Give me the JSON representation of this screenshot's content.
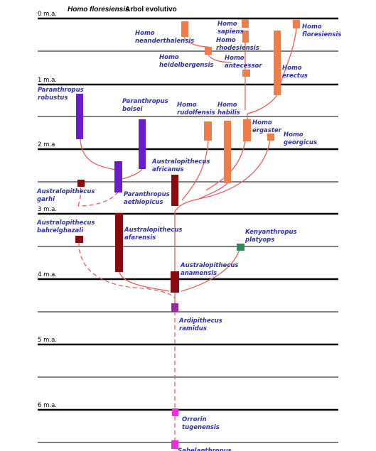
{
  "title": {
    "species_italic": "Homo floresiensis",
    "text": "Arbol evolutivo"
  },
  "time_labels": {
    "t0": "0 m.a.",
    "t1": "1 m.a.",
    "t2": "2 m.a",
    "t3": "3 m.a.",
    "t4": "4 m.a.",
    "t5": "5 m.a.",
    "t6": "6 m.a."
  },
  "species": {
    "neanderthalensis": [
      "Homo",
      "neanderthalensis"
    ],
    "sapiens": [
      "Homo",
      "sapiens"
    ],
    "rhodesiensis": [
      "Homo",
      "rhodesiensis"
    ],
    "floresiensis": [
      "Homo",
      "floresiensis"
    ],
    "heidelbergensis": [
      "Homo",
      "heidelbergensis"
    ],
    "antecessor": [
      "Homo",
      "antecessor"
    ],
    "erectus": [
      "Homo",
      "erectus"
    ],
    "p_robustus": [
      "Paranthropus",
      "robustus"
    ],
    "p_boisei": [
      "Paranthropus",
      "boisei"
    ],
    "rudolfensis": [
      "Homo",
      "rudolfensis"
    ],
    "habilis": [
      "Homo",
      "habilis"
    ],
    "ergaster": [
      "Homo",
      "ergaster"
    ],
    "georgicus": [
      "Homo",
      "georgicus"
    ],
    "a_africanus": [
      "Australopithecus",
      "africanus"
    ],
    "a_garhi": [
      "Australopithecus",
      "garhi"
    ],
    "p_aethiopicus": [
      "Paranthropus",
      "aethiopicus"
    ],
    "a_bahrelghazali": [
      "Australopithecus",
      "bahrelghazali"
    ],
    "a_afarensis": [
      "Australopithecus",
      "afarensis"
    ],
    "k_platyops": [
      "Kenyanthropus",
      "platyops"
    ],
    "a_anamensis": [
      "Australopithecus",
      "anamensis"
    ],
    "ramidus": [
      "Ardipithecus",
      "ramidus"
    ],
    "tugenensis": [
      "Orrorin",
      "tugenensis"
    ],
    "sahelanthropus": [
      "Sahelanthropus"
    ]
  },
  "colors": {
    "homo": "#ef7d4a",
    "paranthropus": "#6a1bcc",
    "australopithecus": "#8b0a10",
    "kenyanthropus": "#2e8b57",
    "ardipithecus": "#9b2d9b",
    "orrorin": "#ee2fd8",
    "label": "#3131a3",
    "connector": "#e06060"
  }
}
